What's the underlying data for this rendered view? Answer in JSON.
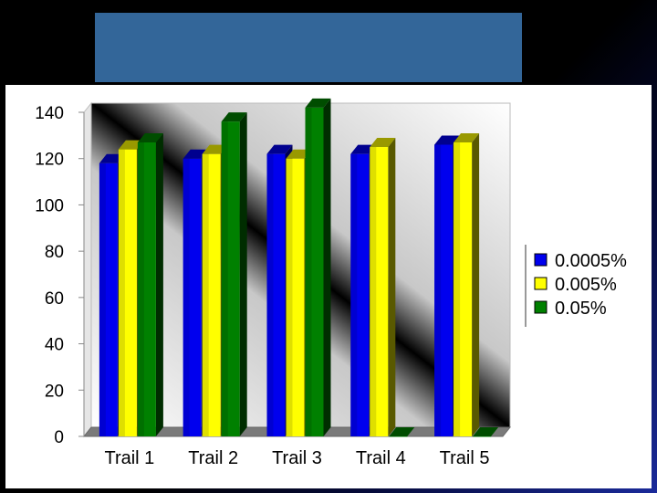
{
  "slide": {
    "title": ""
  },
  "chart_data": {
    "type": "bar",
    "categories": [
      "Trail 1",
      "Trail 2",
      "Trail 3",
      "Trail 4",
      "Trail 5"
    ],
    "series": [
      {
        "name": "0.0005%",
        "values": [
          118,
          120,
          122,
          122,
          126
        ],
        "color": "#0000ee"
      },
      {
        "name": "0.005%",
        "values": [
          124,
          122,
          120,
          125,
          127
        ],
        "color": "#ffff00"
      },
      {
        "name": "0.05%",
        "values": [
          127,
          136,
          142,
          0,
          0
        ],
        "color": "#008000"
      }
    ],
    "ylim": [
      0,
      140
    ],
    "yticks": [
      0,
      20,
      40,
      60,
      80,
      100,
      120,
      140
    ],
    "legend_position": "right",
    "style": "3d",
    "grid": false
  }
}
